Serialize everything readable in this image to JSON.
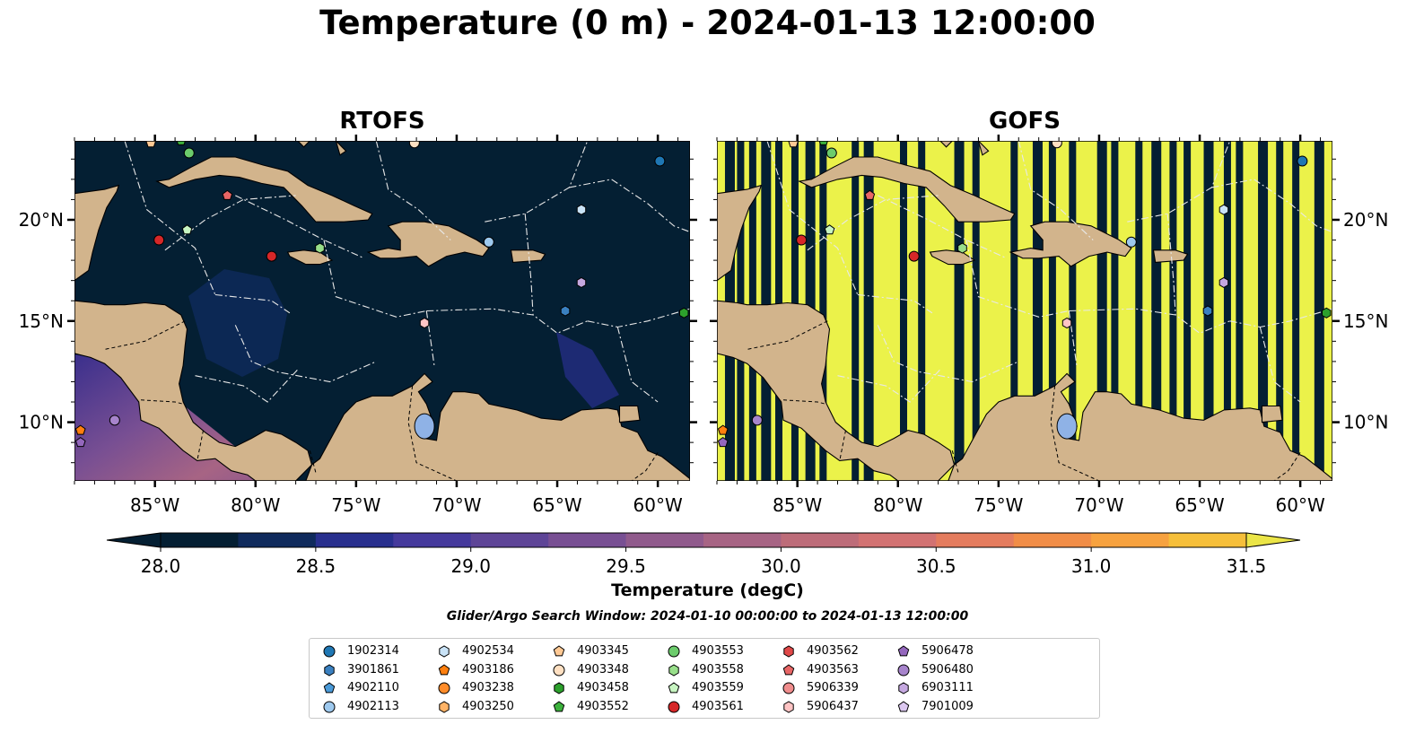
{
  "title": "Temperature (0 m) - 2024-01-13 12:00:00",
  "panels": {
    "left": {
      "title": "RTOFS"
    },
    "right": {
      "title": "GOFS"
    }
  },
  "axes": {
    "lon_ticks": [
      "85°W",
      "80°W",
      "75°W",
      "70°W",
      "65°W",
      "60°W"
    ],
    "lat_ticks": [
      "20°N",
      "15°N",
      "10°N"
    ]
  },
  "colorbar": {
    "label": "Temperature (degC)",
    "ticks": [
      "28.0",
      "28.5",
      "29.0",
      "29.5",
      "30.0",
      "30.5",
      "31.0",
      "31.5"
    ],
    "range": [
      28.0,
      31.5
    ],
    "colors": [
      "#041f33",
      "#0f2a5c",
      "#282f8e",
      "#45399c",
      "#5e4597",
      "#784f93",
      "#905a8c",
      "#a76484",
      "#bd6c79",
      "#d27272",
      "#e47c5e",
      "#f18d47",
      "#f7a23f",
      "#f6bf3a",
      "#ebe547"
    ]
  },
  "search_window": "Glider/Argo Search Window: 2024-01-10 00:00:00 to 2024-01-13 12:00:00",
  "legend": [
    {
      "id": "1902314",
      "marker": "circle",
      "color": "#1f77b4"
    },
    {
      "id": "3901861",
      "marker": "hexagon",
      "color": "#3a80c0"
    },
    {
      "id": "4902110",
      "marker": "pentagon",
      "color": "#4a9ad8"
    },
    {
      "id": "4902113",
      "marker": "circle",
      "color": "#9ec9ee"
    },
    {
      "id": "4902534",
      "marker": "hexagon",
      "color": "#c9e3f7"
    },
    {
      "id": "4903186",
      "marker": "pentagon",
      "color": "#ff7f0e"
    },
    {
      "id": "4903238",
      "marker": "circle",
      "color": "#ff8c2a"
    },
    {
      "id": "4903250",
      "marker": "hexagon",
      "color": "#ffb366"
    },
    {
      "id": "4903345",
      "marker": "pentagon",
      "color": "#ffc994"
    },
    {
      "id": "4903348",
      "marker": "circle",
      "color": "#ffe0c2"
    },
    {
      "id": "4903458",
      "marker": "hexagon",
      "color": "#2ca02c"
    },
    {
      "id": "4903552",
      "marker": "pentagon",
      "color": "#3cb13c"
    },
    {
      "id": "4903553",
      "marker": "circle",
      "color": "#6ccc6c"
    },
    {
      "id": "4903558",
      "marker": "hexagon",
      "color": "#98df8a"
    },
    {
      "id": "4903559",
      "marker": "pentagon",
      "color": "#c8f5c2"
    },
    {
      "id": "4903561",
      "marker": "circle",
      "color": "#d62728"
    },
    {
      "id": "4903562",
      "marker": "hexagon",
      "color": "#e04848"
    },
    {
      "id": "4903563",
      "marker": "pentagon",
      "color": "#e86666"
    },
    {
      "id": "5906339",
      "marker": "circle",
      "color": "#f08d8d"
    },
    {
      "id": "5906437",
      "marker": "hexagon",
      "color": "#ffc4c4"
    },
    {
      "id": "5906478",
      "marker": "pentagon",
      "color": "#9467bd"
    },
    {
      "id": "5906480",
      "marker": "circle",
      "color": "#a784cc"
    },
    {
      "id": "6903111",
      "marker": "hexagon",
      "color": "#c5a8e0"
    },
    {
      "id": "7901009",
      "marker": "pentagon",
      "color": "#dcc8f0"
    }
  ],
  "map_colors": {
    "land": "#d2b48c",
    "ocean_cold": "#041f33",
    "ocean_warm": "#ebf24a",
    "eez_line": "#e8e8e8",
    "lake": "#8fb2e6"
  }
}
